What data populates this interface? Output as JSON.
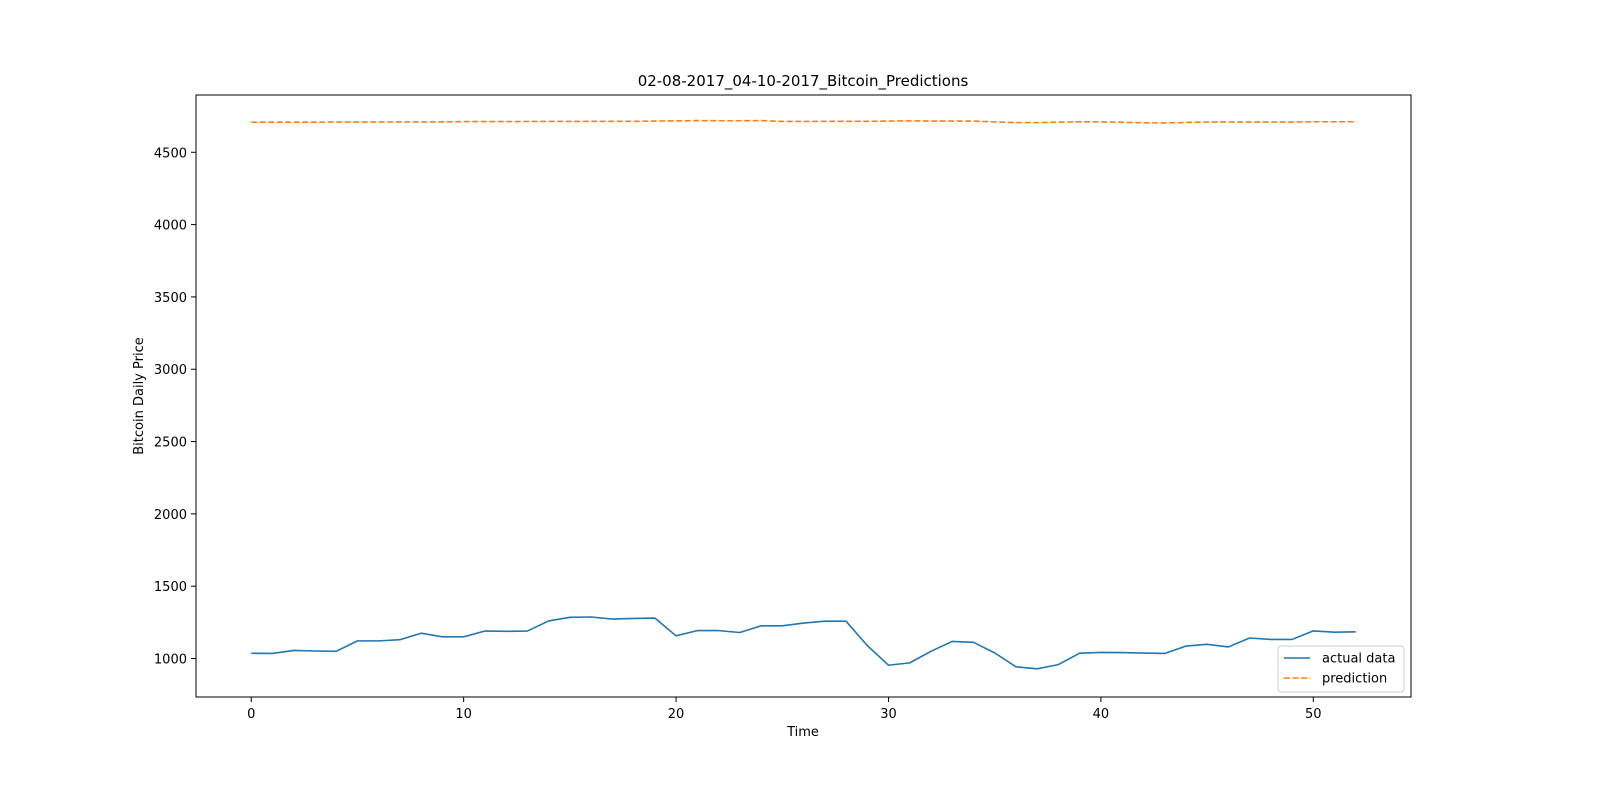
{
  "chart_data": {
    "type": "line",
    "title": "02-08-2017_04-10-2017_Bitcoin_Predictions",
    "xlabel": "Time",
    "ylabel": "Bitcoin Daily Price",
    "xlim": [
      -2.6,
      54.6
    ],
    "ylim": [
      734,
      4896
    ],
    "xticks": [
      0,
      10,
      20,
      30,
      40,
      50
    ],
    "yticks": [
      1000,
      1500,
      2000,
      2500,
      3000,
      3500,
      4000,
      4500
    ],
    "grid": false,
    "legend_position": "lower right",
    "x": [
      0,
      1,
      2,
      3,
      4,
      5,
      6,
      7,
      8,
      9,
      10,
      11,
      12,
      13,
      14,
      15,
      16,
      17,
      18,
      19,
      20,
      21,
      22,
      23,
      24,
      25,
      26,
      27,
      28,
      29,
      30,
      31,
      32,
      33,
      34,
      35,
      36,
      37,
      38,
      39,
      40,
      41,
      42,
      43,
      44,
      45,
      46,
      47,
      48,
      49,
      50,
      51,
      52
    ],
    "series": [
      {
        "name": "actual data",
        "color": "#1f77b4",
        "style": "solid",
        "values": [
          1036,
          1035,
          1056,
          1052,
          1050,
          1122,
          1122,
          1130,
          1175,
          1150,
          1150,
          1190,
          1188,
          1190,
          1260,
          1285,
          1287,
          1273,
          1277,
          1280,
          1157,
          1193,
          1193,
          1180,
          1226,
          1226,
          1245,
          1258,
          1258,
          1090,
          954,
          970,
          1050,
          1118,
          1112,
          1039,
          943,
          929,
          958,
          1037,
          1042,
          1041,
          1038,
          1035,
          1086,
          1098,
          1080,
          1142,
          1132,
          1132,
          1191,
          1182,
          1185
        ]
      },
      {
        "name": "prediction",
        "color": "#ff7f0e",
        "style": "dashed",
        "values": [
          4708,
          4708,
          4708,
          4708,
          4709,
          4709,
          4709,
          4710,
          4710,
          4710,
          4712,
          4712,
          4712,
          4713,
          4713,
          4713,
          4714,
          4714,
          4714,
          4716,
          4717,
          4719,
          4718,
          4718,
          4719,
          4713,
          4713,
          4714,
          4714,
          4714,
          4716,
          4717,
          4716,
          4716,
          4716,
          4710,
          4705,
          4705,
          4708,
          4711,
          4710,
          4707,
          4704,
          4703,
          4706,
          4709,
          4709,
          4709,
          4709,
          4709,
          4711,
          4711,
          4711
        ]
      }
    ]
  }
}
